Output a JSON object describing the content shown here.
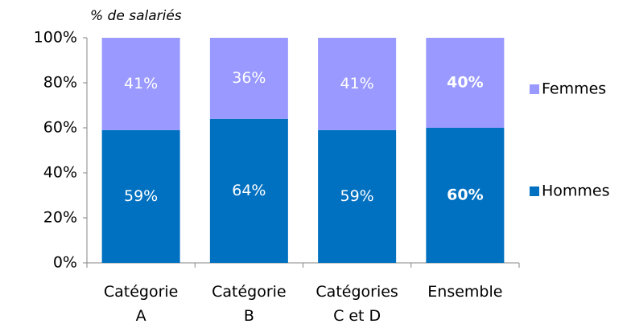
{
  "chart_data": {
    "type": "stacked_bar",
    "y_axis_label": "% de salariés",
    "categories": [
      "Catégorie A",
      "Catégorie B",
      "Catégories C et D",
      "Ensemble"
    ],
    "series": [
      {
        "name": "Hommes",
        "color": "#0070c0",
        "values": [
          59,
          64,
          59,
          60
        ],
        "value_labels": [
          "59%",
          "64%",
          "59%",
          "60%"
        ]
      },
      {
        "name": "Femmes",
        "color": "#9999ff",
        "values": [
          41,
          36,
          41,
          40
        ],
        "value_labels": [
          "41%",
          "36%",
          "41%",
          "40%"
        ]
      }
    ],
    "ylim": [
      0,
      100
    ],
    "yticks": [
      {
        "value": 0,
        "label": "0%"
      },
      {
        "value": 20,
        "label": "20%"
      },
      {
        "value": 40,
        "label": "40%"
      },
      {
        "value": 60,
        "label": "60%"
      },
      {
        "value": 80,
        "label": "80%"
      },
      {
        "value": 100,
        "label": "100%"
      }
    ],
    "grid": false,
    "legend": "right"
  }
}
